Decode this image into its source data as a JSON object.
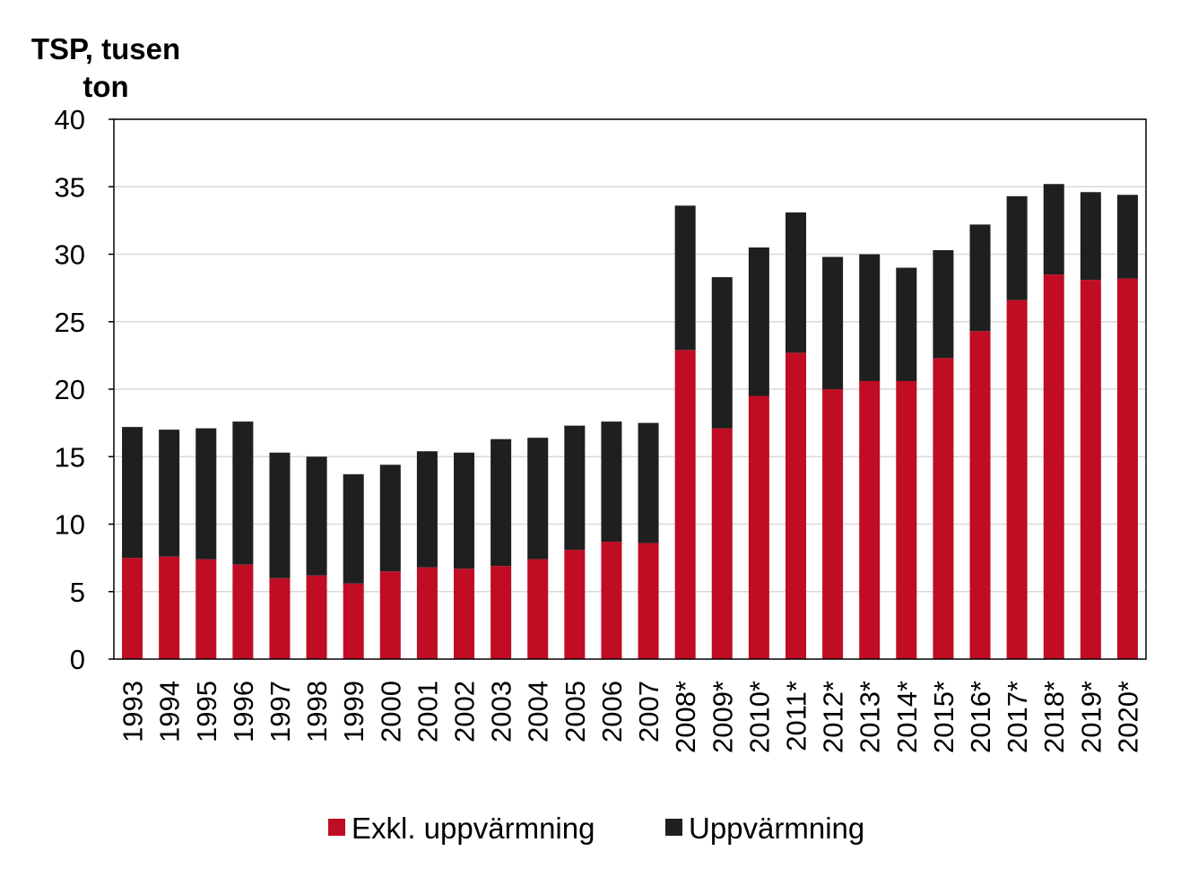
{
  "chart_data": {
    "type": "bar",
    "stacked": true,
    "ylabel_lines": [
      "TSP, tusen",
      "ton"
    ],
    "ylim": [
      0,
      40
    ],
    "yticks": [
      0,
      5,
      10,
      15,
      20,
      25,
      30,
      35,
      40
    ],
    "grid": true,
    "legend_position": "bottom",
    "categories": [
      "1993",
      "1994",
      "1995",
      "1996",
      "1997",
      "1998",
      "1999",
      "2000",
      "2001",
      "2002",
      "2003",
      "2004",
      "2005",
      "2006",
      "2007",
      "2008*",
      "2009*",
      "2010*",
      "2011*",
      "2012*",
      "2013*",
      "2014*",
      "2015*",
      "2016*",
      "2017*",
      "2018*",
      "2019*",
      "2020*"
    ],
    "series": [
      {
        "name": "Exkl. uppvärmning",
        "color": "#C00D24",
        "values": [
          7.5,
          7.6,
          7.4,
          7.0,
          6.0,
          6.2,
          5.6,
          6.5,
          6.8,
          6.7,
          6.9,
          7.4,
          8.1,
          8.7,
          8.6,
          22.9,
          17.1,
          19.5,
          22.7,
          20.0,
          20.6,
          20.6,
          22.3,
          24.3,
          26.6,
          28.5,
          28.1,
          28.2
        ]
      },
      {
        "name": "Uppvärmning",
        "color": "#1F1F1F",
        "values": [
          9.7,
          9.4,
          9.7,
          10.6,
          9.3,
          8.8,
          8.1,
          7.9,
          8.6,
          8.6,
          9.4,
          9.0,
          9.2,
          8.9,
          8.9,
          10.7,
          11.2,
          11.0,
          10.4,
          9.8,
          9.4,
          8.4,
          8.0,
          7.9,
          7.7,
          6.7,
          6.5,
          6.2
        ]
      }
    ]
  }
}
